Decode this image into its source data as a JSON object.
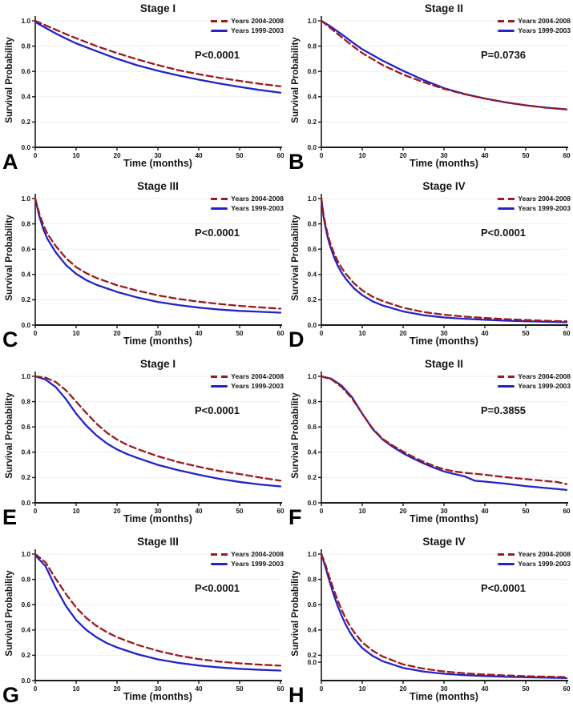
{
  "figure": {
    "ylabel": "Survival Probability",
    "xlabel": "Time (months)",
    "legend": [
      "Years 2004-2008",
      "Years 1999-2003"
    ],
    "x_ticks": [
      0,
      10,
      20,
      30,
      40,
      50,
      60
    ],
    "y_ticks": [
      0.0,
      0.2,
      0.4,
      0.6,
      0.8,
      1.0
    ],
    "colors": {
      "series_2004_2008": "#9B1B1E",
      "series_1999_2003": "#2323C8",
      "axis": "#1a1a1a",
      "grid": "#efefef",
      "text": "#151515",
      "background": "#ffffff"
    },
    "legend_position": "top-right",
    "grid": "faint-horizontal"
  },
  "chart_data": [
    {
      "type": "line",
      "panel_letter": "A",
      "title": "Stage I",
      "p_value": "P<0.0001",
      "xlabel": "Time (months)",
      "ylabel": "Survival Probability",
      "xlim": [
        0,
        60
      ],
      "ylim": [
        0.0,
        1.0
      ],
      "series": [
        {
          "name": "Years 2004-2008",
          "style": "dashed",
          "color": "#9B1B1E",
          "x": [
            0,
            2.5,
            5,
            7.5,
            10,
            15,
            20,
            25,
            30,
            35,
            40,
            45,
            50,
            55,
            60
          ],
          "y": [
            1.0,
            0.965,
            0.93,
            0.895,
            0.862,
            0.8,
            0.745,
            0.695,
            0.65,
            0.61,
            0.578,
            0.55,
            0.525,
            0.502,
            0.482
          ]
        },
        {
          "name": "Years 1999-2003",
          "style": "solid",
          "color": "#2323C8",
          "x": [
            0,
            2.5,
            5,
            7.5,
            10,
            15,
            20,
            25,
            30,
            35,
            40,
            45,
            50,
            55,
            60
          ],
          "y": [
            0.99,
            0.945,
            0.9,
            0.86,
            0.822,
            0.76,
            0.7,
            0.648,
            0.605,
            0.568,
            0.535,
            0.505,
            0.478,
            0.453,
            0.432
          ]
        }
      ]
    },
    {
      "type": "line",
      "panel_letter": "B",
      "title": "Stage II",
      "p_value": "P=0.0736",
      "xlabel": "Time (months)",
      "ylabel": "Survival Probability",
      "xlim": [
        0,
        60
      ],
      "ylim": [
        0.0,
        1.0
      ],
      "series": [
        {
          "name": "Years 2004-2008",
          "style": "dashed",
          "color": "#9B1B1E",
          "x": [
            0,
            2.5,
            5,
            7.5,
            10,
            15,
            20,
            25,
            30,
            35,
            40,
            45,
            50,
            55,
            60
          ],
          "y": [
            1.0,
            0.935,
            0.87,
            0.805,
            0.745,
            0.65,
            0.575,
            0.515,
            0.462,
            0.42,
            0.385,
            0.356,
            0.332,
            0.313,
            0.3
          ]
        },
        {
          "name": "Years 1999-2003",
          "style": "solid",
          "color": "#2323C8",
          "x": [
            0,
            2.5,
            5,
            7.5,
            10,
            15,
            20,
            25,
            30,
            35,
            40,
            45,
            50,
            55,
            60
          ],
          "y": [
            1.0,
            0.95,
            0.893,
            0.833,
            0.775,
            0.685,
            0.605,
            0.532,
            0.468,
            0.422,
            0.386,
            0.356,
            0.332,
            0.314,
            0.3
          ]
        }
      ]
    },
    {
      "type": "line",
      "panel_letter": "C",
      "title": "Stage III",
      "p_value": "P<0.0001",
      "xlabel": "Time (months)",
      "ylabel": "Survival Probability",
      "xlim": [
        0,
        60
      ],
      "ylim": [
        0.0,
        1.0
      ],
      "series": [
        {
          "name": "Years 2004-2008",
          "style": "dashed",
          "color": "#9B1B1E",
          "x": [
            0,
            1,
            2,
            3,
            5,
            7.5,
            10,
            12.5,
            15,
            20,
            25,
            30,
            35,
            40,
            45,
            50,
            55,
            60
          ],
          "y": [
            1.0,
            0.88,
            0.79,
            0.72,
            0.625,
            0.53,
            0.458,
            0.41,
            0.372,
            0.315,
            0.272,
            0.235,
            0.207,
            0.185,
            0.167,
            0.152,
            0.14,
            0.13
          ]
        },
        {
          "name": "Years 1999-2003",
          "style": "solid",
          "color": "#2323C8",
          "x": [
            0,
            1,
            2,
            3,
            5,
            7.5,
            10,
            12.5,
            15,
            20,
            25,
            30,
            35,
            40,
            45,
            50,
            55,
            60
          ],
          "y": [
            1.0,
            0.86,
            0.755,
            0.68,
            0.575,
            0.475,
            0.405,
            0.355,
            0.318,
            0.262,
            0.218,
            0.183,
            0.158,
            0.138,
            0.123,
            0.112,
            0.105,
            0.098
          ]
        }
      ]
    },
    {
      "type": "line",
      "panel_letter": "D",
      "title": "Stage IV",
      "p_value": "P<0.0001",
      "xlabel": "Time (months)",
      "ylabel": "Survival Probability",
      "xlim": [
        0,
        60
      ],
      "ylim": [
        0.0,
        1.0
      ],
      "series": [
        {
          "name": "Years 2004-2008",
          "style": "dashed",
          "color": "#9B1B1E",
          "x": [
            0,
            0.5,
            1,
            1.5,
            2,
            3,
            4,
            5,
            6,
            8,
            10,
            12.5,
            15,
            20,
            25,
            30,
            35,
            40,
            45,
            50,
            55,
            60
          ],
          "y": [
            1.0,
            0.88,
            0.795,
            0.725,
            0.665,
            0.575,
            0.505,
            0.45,
            0.405,
            0.33,
            0.275,
            0.225,
            0.19,
            0.137,
            0.103,
            0.082,
            0.067,
            0.056,
            0.047,
            0.04,
            0.034,
            0.03
          ]
        },
        {
          "name": "Years 1999-2003",
          "style": "solid",
          "color": "#2323C8",
          "x": [
            0,
            0.5,
            1,
            1.5,
            2,
            3,
            4,
            5,
            6,
            8,
            10,
            12.5,
            15,
            20,
            25,
            30,
            35,
            40,
            45,
            50,
            55,
            60
          ],
          "y": [
            1.0,
            0.865,
            0.775,
            0.7,
            0.64,
            0.545,
            0.47,
            0.412,
            0.365,
            0.29,
            0.237,
            0.188,
            0.155,
            0.108,
            0.078,
            0.06,
            0.05,
            0.042,
            0.035,
            0.03,
            0.026,
            0.022
          ]
        }
      ]
    },
    {
      "type": "line",
      "panel_letter": "E",
      "title": "Stage I",
      "p_value": "P<0.0001",
      "xlabel": "Time (months)",
      "ylabel": "Survival Probability",
      "xlim": [
        0,
        60
      ],
      "ylim": [
        0.0,
        1.0
      ],
      "series": [
        {
          "name": "Years 2004-2008",
          "style": "dashed",
          "color": "#9B1B1E",
          "x": [
            0,
            2.5,
            5,
            7.5,
            10,
            12.5,
            15,
            17.5,
            20,
            22.5,
            25,
            30,
            35,
            40,
            45,
            50,
            55,
            60
          ],
          "y": [
            1.0,
            0.99,
            0.955,
            0.89,
            0.8,
            0.71,
            0.625,
            0.555,
            0.5,
            0.458,
            0.425,
            0.368,
            0.322,
            0.285,
            0.252,
            0.228,
            0.2,
            0.175
          ]
        },
        {
          "name": "Years 1999-2003",
          "style": "solid",
          "color": "#2323C8",
          "x": [
            0,
            2.5,
            5,
            7.5,
            10,
            12.5,
            15,
            17.5,
            20,
            22.5,
            25,
            30,
            35,
            40,
            45,
            50,
            55,
            60
          ],
          "y": [
            1.0,
            0.975,
            0.915,
            0.82,
            0.705,
            0.61,
            0.532,
            0.47,
            0.422,
            0.385,
            0.355,
            0.3,
            0.258,
            0.222,
            0.19,
            0.165,
            0.145,
            0.13
          ]
        }
      ]
    },
    {
      "type": "line",
      "panel_letter": "F",
      "title": "Stage II",
      "p_value": "P=0.3855",
      "xlabel": "Time (months)",
      "ylabel": "Survival Probability",
      "xlim": [
        0,
        60
      ],
      "ylim": [
        0.0,
        1.0
      ],
      "series": [
        {
          "name": "Years 2004-2008",
          "style": "dashed",
          "color": "#9B1B1E",
          "x": [
            0,
            2.5,
            5,
            7.5,
            10,
            12.5,
            15,
            17.5,
            20,
            22.5,
            25,
            27.5,
            30,
            32.5,
            35,
            37.5,
            40,
            45,
            50,
            55,
            57.5,
            60
          ],
          "y": [
            1.0,
            0.975,
            0.915,
            0.825,
            0.705,
            0.59,
            0.505,
            0.452,
            0.405,
            0.362,
            0.325,
            0.292,
            0.265,
            0.248,
            0.238,
            0.23,
            0.222,
            0.203,
            0.188,
            0.172,
            0.165,
            0.148
          ]
        },
        {
          "name": "Years 1999-2003",
          "style": "solid",
          "color": "#2323C8",
          "x": [
            0,
            2.5,
            5,
            7.5,
            10,
            12.5,
            15,
            17.5,
            20,
            22.5,
            25,
            27.5,
            30,
            32.5,
            35,
            37.5,
            40,
            45,
            50,
            55,
            57.5,
            60
          ],
          "y": [
            1.0,
            0.98,
            0.925,
            0.835,
            0.705,
            0.585,
            0.5,
            0.442,
            0.392,
            0.35,
            0.312,
            0.278,
            0.248,
            0.228,
            0.21,
            0.175,
            0.168,
            0.152,
            0.132,
            0.117,
            0.11,
            0.102
          ]
        }
      ]
    },
    {
      "type": "line",
      "panel_letter": "G",
      "title": "Stage III",
      "p_value": "P<0.0001",
      "xlabel": "Time (months)",
      "ylabel": "Survival Probability",
      "xlim": [
        0,
        60
      ],
      "ylim": [
        0.0,
        1.0
      ],
      "series": [
        {
          "name": "Years 2004-2008",
          "style": "dashed",
          "color": "#9B1B1E",
          "x": [
            0,
            2.5,
            5,
            7.5,
            10,
            12.5,
            15,
            17.5,
            20,
            25,
            30,
            35,
            40,
            45,
            50,
            55,
            60
          ],
          "y": [
            1.0,
            0.935,
            0.805,
            0.685,
            0.578,
            0.495,
            0.432,
            0.383,
            0.343,
            0.282,
            0.235,
            0.198,
            0.17,
            0.15,
            0.136,
            0.126,
            0.118
          ]
        },
        {
          "name": "Years 1999-2003",
          "style": "solid",
          "color": "#2323C8",
          "x": [
            0,
            2.5,
            5,
            7.5,
            10,
            12.5,
            15,
            17.5,
            20,
            25,
            30,
            35,
            40,
            45,
            50,
            55,
            60
          ],
          "y": [
            0.99,
            0.905,
            0.735,
            0.59,
            0.478,
            0.4,
            0.342,
            0.296,
            0.262,
            0.208,
            0.168,
            0.14,
            0.119,
            0.104,
            0.093,
            0.085,
            0.079
          ]
        }
      ]
    },
    {
      "type": "line",
      "panel_letter": "H",
      "title": "Stage IV",
      "p_value": "P<0.0001",
      "xlabel": "Time (months)",
      "ylabel": "Survival Probability",
      "xlim": [
        0,
        60
      ],
      "ylim": [
        0.0,
        1.0
      ],
      "y_zero_label_offset": true,
      "series": [
        {
          "name": "Years 2004-2008",
          "style": "dashed",
          "color": "#9B1B1E",
          "x": [
            0,
            0.5,
            1,
            1.5,
            2,
            3,
            4,
            5,
            6,
            7,
            8,
            10,
            12.5,
            15,
            20,
            25,
            30,
            35,
            40,
            45,
            50,
            55,
            60
          ],
          "y": [
            1.0,
            0.96,
            0.915,
            0.865,
            0.815,
            0.72,
            0.635,
            0.557,
            0.49,
            0.432,
            0.383,
            0.303,
            0.237,
            0.19,
            0.128,
            0.094,
            0.072,
            0.058,
            0.048,
            0.041,
            0.035,
            0.031,
            0.028
          ]
        },
        {
          "name": "Years 1999-2003",
          "style": "solid",
          "color": "#2323C8",
          "x": [
            0,
            0.5,
            1,
            1.5,
            2,
            3,
            4,
            5,
            6,
            7,
            8,
            10,
            12.5,
            15,
            20,
            25,
            30,
            35,
            40,
            45,
            50,
            55,
            60
          ],
          "y": [
            1.0,
            0.95,
            0.895,
            0.84,
            0.785,
            0.68,
            0.59,
            0.51,
            0.44,
            0.382,
            0.333,
            0.257,
            0.196,
            0.153,
            0.1,
            0.071,
            0.054,
            0.043,
            0.036,
            0.03,
            0.026,
            0.023,
            0.02
          ]
        }
      ]
    }
  ]
}
